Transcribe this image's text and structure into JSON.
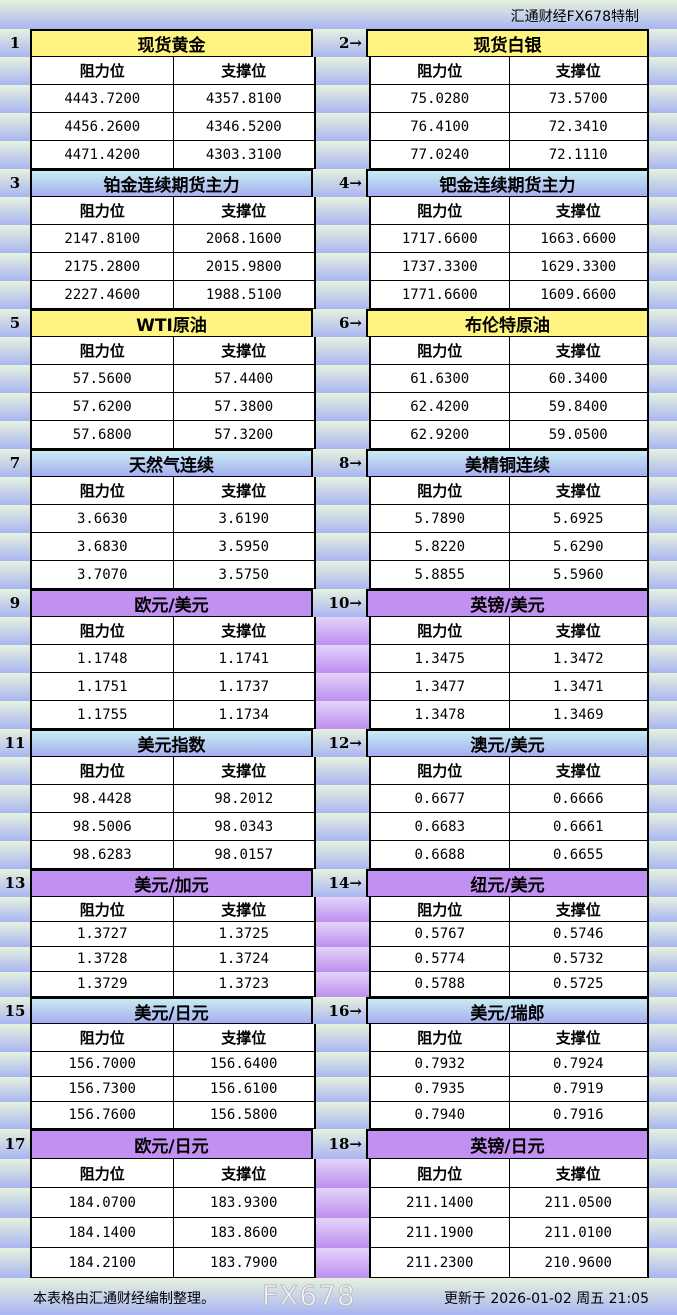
{
  "header": {
    "brand": "汇通财经FX678特制"
  },
  "columns": {
    "resistance": "阻力位",
    "support": "支撑位"
  },
  "themes": {
    "yellow": "#fff47f",
    "blue": "linear #c4e8f2 → #a8b0f0",
    "purple": "#c091f0"
  },
  "groups": [
    {
      "theme": "yellow",
      "left": {
        "num": "1",
        "title": "现货黄金",
        "rows": [
          [
            "4443.7200",
            "4357.8100"
          ],
          [
            "4456.2600",
            "4346.5200"
          ],
          [
            "4471.4200",
            "4303.3100"
          ]
        ]
      },
      "right": {
        "num": "2→",
        "title": "现货白银",
        "rows": [
          [
            "75.0280",
            "73.5700"
          ],
          [
            "76.4100",
            "72.3410"
          ],
          [
            "77.0240",
            "72.1110"
          ]
        ]
      }
    },
    {
      "theme": "blue",
      "left": {
        "num": "3",
        "title": "铂金连续期货主力",
        "rows": [
          [
            "2147.8100",
            "2068.1600"
          ],
          [
            "2175.2800",
            "2015.9800"
          ],
          [
            "2227.4600",
            "1988.5100"
          ]
        ]
      },
      "right": {
        "num": "4→",
        "title": "钯金连续期货主力",
        "rows": [
          [
            "1717.6600",
            "1663.6600"
          ],
          [
            "1737.3300",
            "1629.3300"
          ],
          [
            "1771.6600",
            "1609.6600"
          ]
        ]
      }
    },
    {
      "theme": "yellow",
      "left": {
        "num": "5",
        "title": "WTI原油",
        "rows": [
          [
            "57.5600",
            "57.4400"
          ],
          [
            "57.6200",
            "57.3800"
          ],
          [
            "57.6800",
            "57.3200"
          ]
        ]
      },
      "right": {
        "num": "6→",
        "title": "布伦特原油",
        "rows": [
          [
            "61.6300",
            "60.3400"
          ],
          [
            "62.4200",
            "59.8400"
          ],
          [
            "62.9200",
            "59.0500"
          ]
        ]
      }
    },
    {
      "theme": "blue",
      "left": {
        "num": "7",
        "title": "天然气连续",
        "rows": [
          [
            "3.6630",
            "3.6190"
          ],
          [
            "3.6830",
            "3.5950"
          ],
          [
            "3.7070",
            "3.5750"
          ]
        ]
      },
      "right": {
        "num": "8→",
        "title": "美精铜连续",
        "rows": [
          [
            "5.7890",
            "5.6925"
          ],
          [
            "5.8220",
            "5.6290"
          ],
          [
            "5.8855",
            "5.5960"
          ]
        ]
      }
    },
    {
      "theme": "purple",
      "left": {
        "num": "9",
        "title": "欧元/美元",
        "rows": [
          [
            "1.1748",
            "1.1741"
          ],
          [
            "1.1751",
            "1.1737"
          ],
          [
            "1.1755",
            "1.1734"
          ]
        ]
      },
      "right": {
        "num": "10→",
        "title": "英镑/美元",
        "rows": [
          [
            "1.3475",
            "1.3472"
          ],
          [
            "1.3477",
            "1.3471"
          ],
          [
            "1.3478",
            "1.3469"
          ]
        ]
      }
    },
    {
      "theme": "blue",
      "left": {
        "num": "11",
        "title": "美元指数",
        "rows": [
          [
            "98.4428",
            "98.2012"
          ],
          [
            "98.5006",
            "98.0343"
          ],
          [
            "98.6283",
            "98.0157"
          ]
        ]
      },
      "right": {
        "num": "12→",
        "title": "澳元/美元",
        "rows": [
          [
            "0.6677",
            "0.6666"
          ],
          [
            "0.6683",
            "0.6661"
          ],
          [
            "0.6688",
            "0.6655"
          ]
        ]
      }
    },
    {
      "theme": "purple",
      "left": {
        "num": "13",
        "title": "美元/加元",
        "rows": [
          [
            "1.3727",
            "1.3725"
          ],
          [
            "1.3728",
            "1.3724"
          ],
          [
            "1.3729",
            "1.3723"
          ]
        ]
      },
      "right": {
        "num": "14→",
        "title": "纽元/美元",
        "rows": [
          [
            "0.5767",
            "0.5746"
          ],
          [
            "0.5774",
            "0.5732"
          ],
          [
            "0.5788",
            "0.5725"
          ]
        ]
      }
    },
    {
      "theme": "blue",
      "left": {
        "num": "15",
        "title": "美元/日元",
        "rows": [
          [
            "156.7000",
            "156.6400"
          ],
          [
            "156.7300",
            "156.6100"
          ],
          [
            "156.7600",
            "156.5800"
          ]
        ]
      },
      "right": {
        "num": "16→",
        "title": "美元/瑞郎",
        "rows": [
          [
            "0.7932",
            "0.7924"
          ],
          [
            "0.7935",
            "0.7919"
          ],
          [
            "0.7940",
            "0.7916"
          ]
        ]
      }
    },
    {
      "theme": "purple",
      "left": {
        "num": "17",
        "title": "欧元/日元",
        "rows": [
          [
            "184.0700",
            "183.9300"
          ],
          [
            "184.1400",
            "183.8600"
          ],
          [
            "184.2100",
            "183.7900"
          ]
        ]
      },
      "right": {
        "num": "18→",
        "title": "英镑/日元",
        "rows": [
          [
            "211.1400",
            "211.0500"
          ],
          [
            "211.1900",
            "211.0100"
          ],
          [
            "211.2300",
            "210.9600"
          ]
        ]
      }
    }
  ],
  "footer": {
    "note": "本表格由汇通财经编制整理。",
    "updated": "更新于 2026-01-02 周五 21:05",
    "watermark": "FX678"
  }
}
